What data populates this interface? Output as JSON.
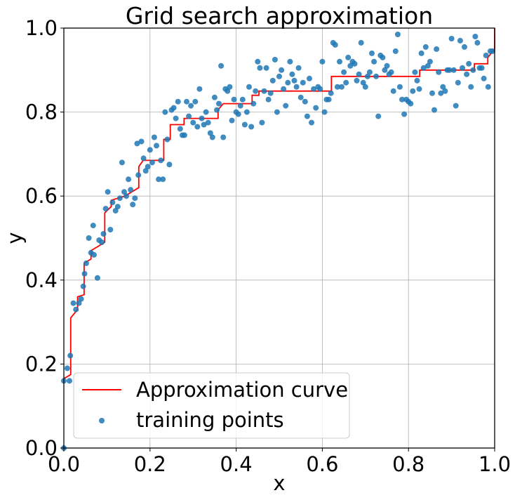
{
  "chart_data": {
    "type": "scatter",
    "title": "Grid search approximation",
    "xlabel": "x",
    "ylabel": "y",
    "xlim": [
      0.0,
      1.0
    ],
    "ylim": [
      0.0,
      1.0
    ],
    "xticks": [
      "0.0",
      "0.2",
      "0.4",
      "0.6",
      "0.8",
      "1.0"
    ],
    "yticks": [
      "0.0",
      "0.2",
      "0.4",
      "0.6",
      "0.8",
      "1.0"
    ],
    "grid": true,
    "legend_position": "lower-left",
    "legend": [
      "Approximation curve",
      "training points"
    ],
    "series": [
      {
        "name": "Approximation curve",
        "kind": "step-line",
        "color": "#ff0000",
        "x": [
          0.0,
          0.016,
          0.016,
          0.032,
          0.032,
          0.047,
          0.047,
          0.063,
          0.063,
          0.079,
          0.079,
          0.095,
          0.095,
          0.11,
          0.11,
          0.142,
          0.142,
          0.174,
          0.174,
          0.184,
          0.184,
          0.232,
          0.232,
          0.247,
          0.247,
          0.279,
          0.279,
          0.358,
          0.358,
          0.37,
          0.37,
          0.437,
          0.437,
          0.453,
          0.453,
          0.621,
          0.621,
          0.826,
          0.826,
          0.953,
          0.953,
          0.984,
          0.984,
          1.0,
          1.0
        ],
        "y": [
          0.165,
          0.175,
          0.31,
          0.33,
          0.36,
          0.365,
          0.44,
          0.45,
          0.47,
          0.48,
          0.48,
          0.49,
          0.56,
          0.575,
          0.59,
          0.6,
          0.6,
          0.62,
          0.67,
          0.685,
          0.685,
          0.685,
          0.735,
          0.735,
          0.77,
          0.77,
          0.785,
          0.785,
          0.805,
          0.82,
          0.82,
          0.82,
          0.84,
          0.84,
          0.85,
          0.85,
          0.885,
          0.885,
          0.9,
          0.9,
          0.915,
          0.915,
          0.93,
          0.95,
          1.0
        ]
      },
      {
        "name": "training points",
        "kind": "scatter",
        "color": "#1f77b4",
        "points": [
          [
            0.0,
            0.0
          ],
          [
            0.0,
            0.16
          ],
          [
            0.008,
            0.19
          ],
          [
            0.013,
            0.16
          ],
          [
            0.015,
            0.22
          ],
          [
            0.022,
            0.345
          ],
          [
            0.028,
            0.33
          ],
          [
            0.035,
            0.345
          ],
          [
            0.04,
            0.355
          ],
          [
            0.045,
            0.385
          ],
          [
            0.048,
            0.415
          ],
          [
            0.052,
            0.44
          ],
          [
            0.058,
            0.5
          ],
          [
            0.063,
            0.465
          ],
          [
            0.068,
            0.53
          ],
          [
            0.07,
            0.46
          ],
          [
            0.078,
            0.405
          ],
          [
            0.082,
            0.495
          ],
          [
            0.088,
            0.49
          ],
          [
            0.092,
            0.51
          ],
          [
            0.097,
            0.57
          ],
          [
            0.102,
            0.61
          ],
          [
            0.108,
            0.52
          ],
          [
            0.113,
            0.585
          ],
          [
            0.12,
            0.565
          ],
          [
            0.125,
            0.575
          ],
          [
            0.13,
            0.595
          ],
          [
            0.135,
            0.68
          ],
          [
            0.14,
            0.61
          ],
          [
            0.145,
            0.6
          ],
          [
            0.15,
            0.64
          ],
          [
            0.155,
            0.615
          ],
          [
            0.16,
            0.58
          ],
          [
            0.165,
            0.595
          ],
          [
            0.17,
            0.725
          ],
          [
            0.173,
            0.65
          ],
          [
            0.18,
            0.73
          ],
          [
            0.185,
            0.69
          ],
          [
            0.19,
            0.66
          ],
          [
            0.195,
            0.67
          ],
          [
            0.2,
            0.71
          ],
          [
            0.205,
            0.68
          ],
          [
            0.21,
            0.74
          ],
          [
            0.215,
            0.72
          ],
          [
            0.22,
            0.64
          ],
          [
            0.225,
            0.685
          ],
          [
            0.23,
            0.64
          ],
          [
            0.235,
            0.8
          ],
          [
            0.24,
            0.735
          ],
          [
            0.245,
            0.675
          ],
          [
            0.25,
            0.805
          ],
          [
            0.255,
            0.81
          ],
          [
            0.26,
            0.785
          ],
          [
            0.265,
            0.825
          ],
          [
            0.27,
            0.76
          ],
          [
            0.275,
            0.745
          ],
          [
            0.28,
            0.745
          ],
          [
            0.285,
            0.825
          ],
          [
            0.29,
            0.79
          ],
          [
            0.295,
            0.815
          ],
          [
            0.3,
            0.775
          ],
          [
            0.305,
            0.825
          ],
          [
            0.31,
            0.765
          ],
          [
            0.315,
            0.855
          ],
          [
            0.32,
            0.785
          ],
          [
            0.325,
            0.77
          ],
          [
            0.33,
            0.8
          ],
          [
            0.335,
            0.775
          ],
          [
            0.34,
            0.75
          ],
          [
            0.345,
            0.74
          ],
          [
            0.35,
            0.835
          ],
          [
            0.355,
            0.805
          ],
          [
            0.36,
            0.82
          ],
          [
            0.365,
            0.91
          ],
          [
            0.37,
            0.74
          ],
          [
            0.375,
            0.855
          ],
          [
            0.38,
            0.85
          ],
          [
            0.385,
            0.86
          ],
          [
            0.39,
            0.78
          ],
          [
            0.395,
            0.83
          ],
          [
            0.4,
            0.8
          ],
          [
            0.405,
            0.795
          ],
          [
            0.41,
            0.815
          ],
          [
            0.415,
            0.83
          ],
          [
            0.42,
            0.77
          ],
          [
            0.425,
            0.8
          ],
          [
            0.43,
            0.86
          ],
          [
            0.435,
            0.765
          ],
          [
            0.44,
            0.82
          ],
          [
            0.445,
            0.85
          ],
          [
            0.45,
            0.92
          ],
          [
            0.455,
            0.905
          ],
          [
            0.46,
            0.775
          ],
          [
            0.465,
            0.85
          ],
          [
            0.47,
            0.905
          ],
          [
            0.475,
            0.83
          ],
          [
            0.48,
            0.845
          ],
          [
            0.485,
            0.875
          ],
          [
            0.49,
            0.925
          ],
          [
            0.495,
            0.8
          ],
          [
            0.5,
            0.885
          ],
          [
            0.505,
            0.9
          ],
          [
            0.51,
            0.855
          ],
          [
            0.515,
            0.815
          ],
          [
            0.52,
            0.87
          ],
          [
            0.525,
            0.92
          ],
          [
            0.53,
            0.89
          ],
          [
            0.535,
            0.875
          ],
          [
            0.54,
            0.86
          ],
          [
            0.545,
            0.905
          ],
          [
            0.55,
            0.835
          ],
          [
            0.555,
            0.87
          ],
          [
            0.56,
            0.825
          ],
          [
            0.565,
            0.79
          ],
          [
            0.57,
            0.88
          ],
          [
            0.575,
            0.775
          ],
          [
            0.58,
            0.855
          ],
          [
            0.585,
            0.81
          ],
          [
            0.59,
            0.86
          ],
          [
            0.595,
            0.855
          ],
          [
            0.6,
            0.92
          ],
          [
            0.605,
            0.8
          ],
          [
            0.61,
            0.83
          ],
          [
            0.615,
            0.83
          ],
          [
            0.62,
            0.845
          ],
          [
            0.625,
            0.965
          ],
          [
            0.63,
            0.96
          ],
          [
            0.635,
            0.86
          ],
          [
            0.64,
            0.92
          ],
          [
            0.645,
            0.86
          ],
          [
            0.65,
            0.895
          ],
          [
            0.655,
            0.87
          ],
          [
            0.66,
            0.93
          ],
          [
            0.665,
            0.91
          ],
          [
            0.67,
            0.92
          ],
          [
            0.675,
            0.915
          ],
          [
            0.68,
            0.875
          ],
          [
            0.685,
            0.89
          ],
          [
            0.69,
            0.965
          ],
          [
            0.695,
            0.87
          ],
          [
            0.7,
            0.86
          ],
          [
            0.705,
            0.885
          ],
          [
            0.71,
            0.895
          ],
          [
            0.715,
            0.94
          ],
          [
            0.72,
            0.92
          ],
          [
            0.725,
            0.885
          ],
          [
            0.73,
            0.79
          ],
          [
            0.735,
            0.935
          ],
          [
            0.74,
            0.93
          ],
          [
            0.745,
            0.9
          ],
          [
            0.75,
            0.91
          ],
          [
            0.755,
            0.89
          ],
          [
            0.76,
            0.895
          ],
          [
            0.765,
            0.85
          ],
          [
            0.77,
            0.945
          ],
          [
            0.775,
            0.985
          ],
          [
            0.78,
            0.86
          ],
          [
            0.785,
            0.83
          ],
          [
            0.79,
            0.795
          ],
          [
            0.795,
            0.83
          ],
          [
            0.8,
            0.825
          ],
          [
            0.805,
            0.82
          ],
          [
            0.81,
            0.85
          ],
          [
            0.815,
            0.895
          ],
          [
            0.82,
            0.875
          ],
          [
            0.825,
            0.855
          ],
          [
            0.83,
            0.94
          ],
          [
            0.835,
            0.905
          ],
          [
            0.84,
            0.955
          ],
          [
            0.845,
            0.91
          ],
          [
            0.85,
            0.92
          ],
          [
            0.855,
            0.845
          ],
          [
            0.86,
            0.805
          ],
          [
            0.865,
            0.95
          ],
          [
            0.87,
            0.895
          ],
          [
            0.875,
            0.845
          ],
          [
            0.88,
            0.86
          ],
          [
            0.885,
            0.85
          ],
          [
            0.89,
            0.9
          ],
          [
            0.895,
            0.9
          ],
          [
            0.9,
            0.975
          ],
          [
            0.905,
            0.9
          ],
          [
            0.91,
            0.815
          ],
          [
            0.915,
            0.87
          ],
          [
            0.92,
            0.97
          ],
          [
            0.925,
            0.905
          ],
          [
            0.93,
            0.955
          ],
          [
            0.935,
            0.89
          ],
          [
            0.94,
            0.915
          ],
          [
            0.945,
            0.86
          ],
          [
            0.95,
            0.9
          ],
          [
            0.955,
            0.98
          ],
          [
            0.96,
            0.965
          ],
          [
            0.965,
            0.905
          ],
          [
            0.97,
            0.905
          ],
          [
            0.975,
            0.88
          ],
          [
            0.98,
            0.935
          ],
          [
            0.985,
            0.86
          ],
          [
            0.99,
            0.945
          ],
          [
            0.995,
            0.945
          ]
        ]
      }
    ]
  }
}
